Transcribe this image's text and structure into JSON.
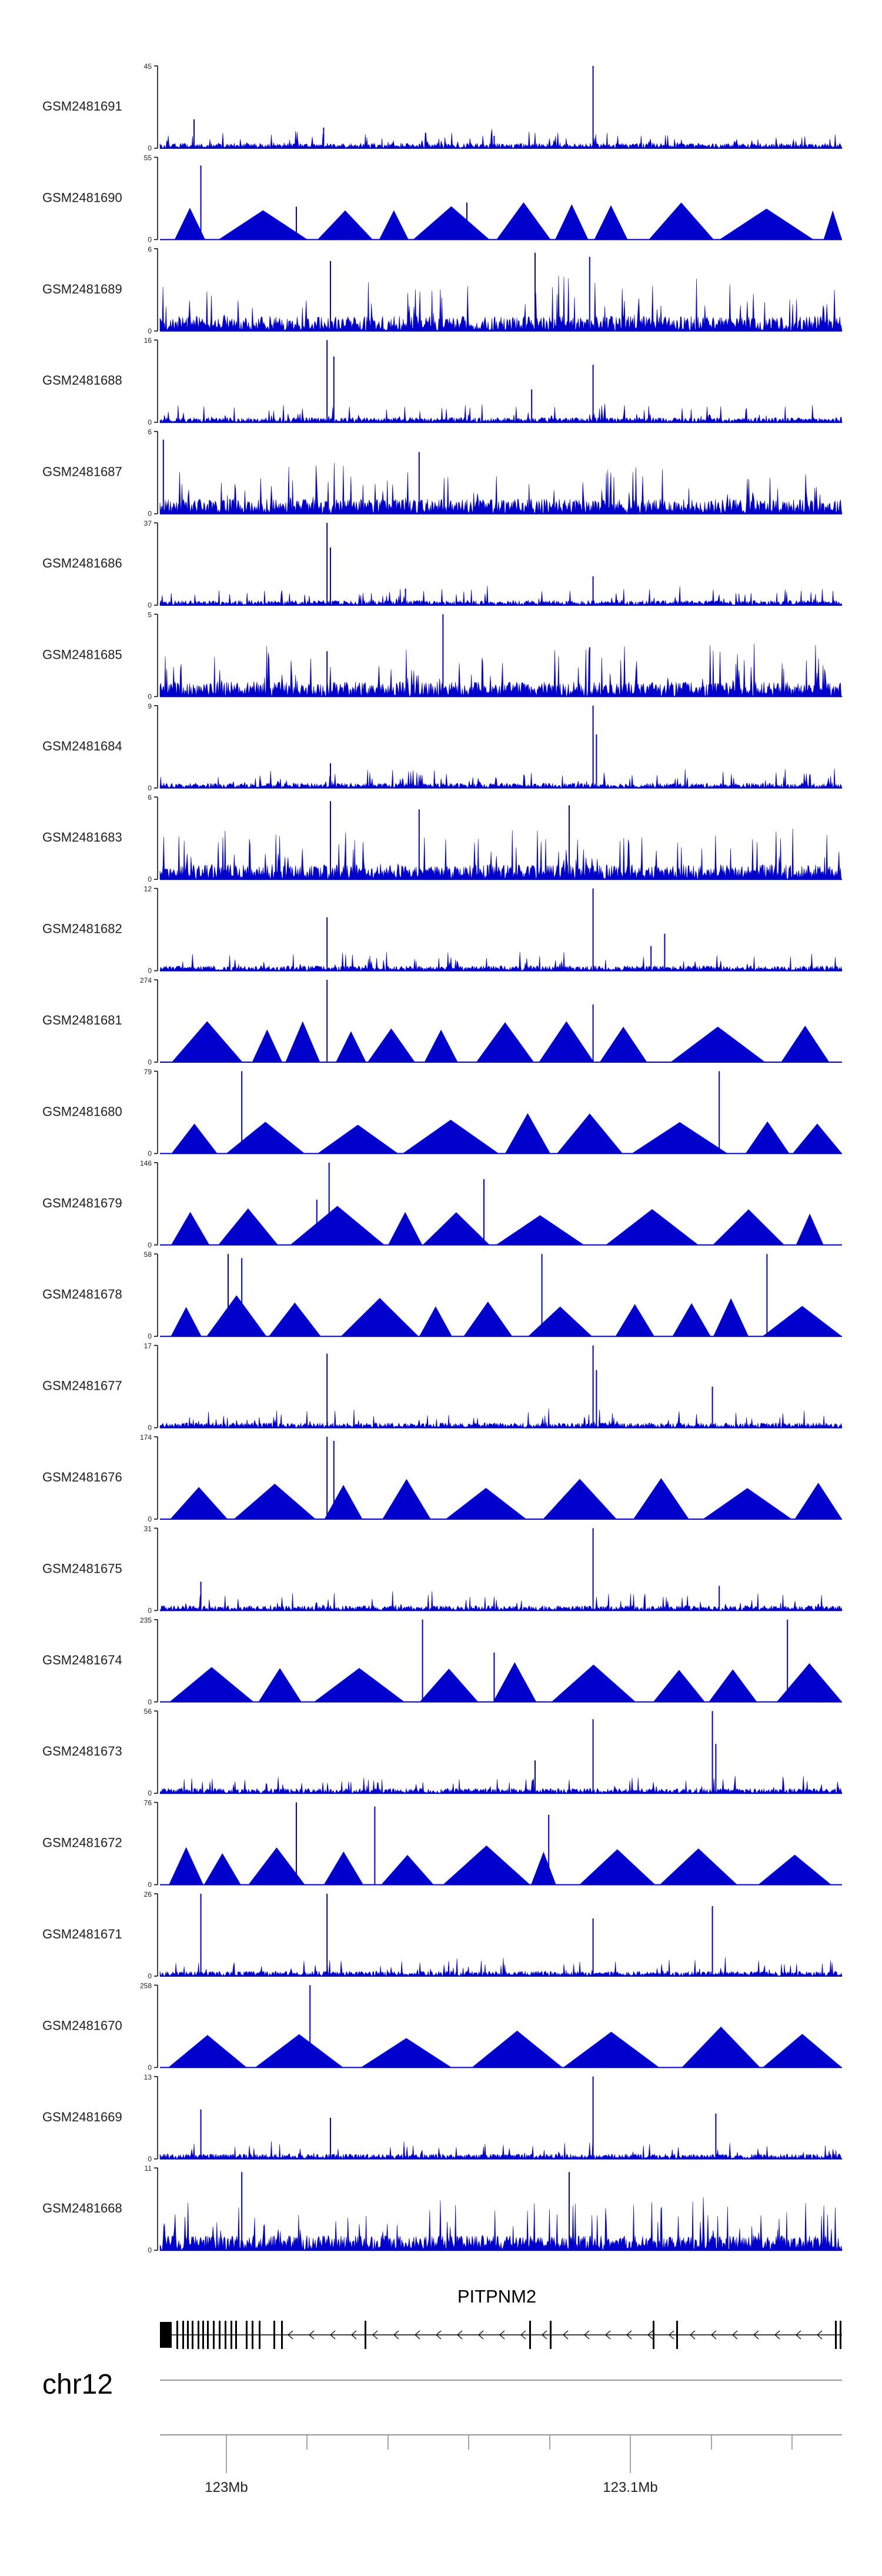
{
  "chart_data": {
    "type": "area",
    "chromosome": "chr12",
    "gene": "PITPNM2",
    "x_ticks": [
      "123Mb",
      "123.1Mb"
    ],
    "tracks": [
      {
        "name": "GSM2481691",
        "ymax": "45",
        "style": "dense",
        "seed": 11,
        "peaks": [
          {
            "p": 0.05,
            "h": 0.35
          },
          {
            "p": 0.24,
            "h": 0.25
          },
          {
            "p": 0.635,
            "h": 1.0
          },
          {
            "p": 0.49,
            "h": 0.15
          }
        ]
      },
      {
        "name": "GSM2481690",
        "ymax": "55",
        "style": "tri",
        "seed": 12,
        "peaks": [
          {
            "p": 0.06,
            "h": 0.9
          },
          {
            "p": 0.045,
            "h": 0.35
          },
          {
            "p": 0.45,
            "h": 0.45
          },
          {
            "p": 0.2,
            "h": 0.4
          }
        ]
      },
      {
        "name": "GSM2481689",
        "ymax": "6",
        "style": "noisy",
        "seed": 13,
        "peaks": [
          {
            "p": 0.25,
            "h": 0.85
          },
          {
            "p": 0.55,
            "h": 0.95
          },
          {
            "p": 0.63,
            "h": 0.9
          }
        ]
      },
      {
        "name": "GSM2481688",
        "ymax": "16",
        "style": "dense",
        "seed": 14,
        "peaks": [
          {
            "p": 0.245,
            "h": 1.0
          },
          {
            "p": 0.255,
            "h": 0.8
          },
          {
            "p": 0.545,
            "h": 0.4
          },
          {
            "p": 0.635,
            "h": 0.7
          }
        ]
      },
      {
        "name": "GSM2481687",
        "ymax": "6",
        "style": "noisy",
        "seed": 15,
        "peaks": [
          {
            "p": 0.005,
            "h": 0.9
          },
          {
            "p": 0.38,
            "h": 0.75
          }
        ]
      },
      {
        "name": "GSM2481686",
        "ymax": "37",
        "style": "dense",
        "seed": 16,
        "peaks": [
          {
            "p": 0.245,
            "h": 1.0
          },
          {
            "p": 0.25,
            "h": 0.7
          },
          {
            "p": 0.635,
            "h": 0.35
          },
          {
            "p": 0.36,
            "h": 0.2
          }
        ]
      },
      {
        "name": "GSM2481685",
        "ymax": "5",
        "style": "noisy",
        "seed": 17,
        "peaks": [
          {
            "p": 0.415,
            "h": 1.0
          },
          {
            "p": 0.63,
            "h": 0.6
          },
          {
            "p": 0.245,
            "h": 0.55
          }
        ]
      },
      {
        "name": "GSM2481684",
        "ymax": "9",
        "style": "dense",
        "seed": 18,
        "peaks": [
          {
            "p": 0.635,
            "h": 1.0
          },
          {
            "p": 0.64,
            "h": 0.65
          },
          {
            "p": 0.25,
            "h": 0.3
          }
        ]
      },
      {
        "name": "GSM2481683",
        "ymax": "6",
        "style": "noisy",
        "seed": 19,
        "peaks": [
          {
            "p": 0.25,
            "h": 0.95
          },
          {
            "p": 0.38,
            "h": 0.85
          },
          {
            "p": 0.6,
            "h": 0.9
          }
        ]
      },
      {
        "name": "GSM2481682",
        "ymax": "12",
        "style": "dense",
        "seed": 20,
        "peaks": [
          {
            "p": 0.245,
            "h": 0.65
          },
          {
            "p": 0.635,
            "h": 1.0
          },
          {
            "p": 0.74,
            "h": 0.45
          },
          {
            "p": 0.72,
            "h": 0.3
          }
        ]
      },
      {
        "name": "GSM2481681",
        "ymax": "274",
        "style": "tri",
        "seed": 21,
        "peaks": [
          {
            "p": 0.245,
            "h": 1.0
          },
          {
            "p": 0.635,
            "h": 0.7
          }
        ]
      },
      {
        "name": "GSM2481680",
        "ymax": "79",
        "style": "tri",
        "seed": 22,
        "peaks": [
          {
            "p": 0.12,
            "h": 1.0
          },
          {
            "p": 0.82,
            "h": 1.0
          }
        ]
      },
      {
        "name": "GSM2481679",
        "ymax": "146",
        "style": "tri",
        "seed": 23,
        "peaks": [
          {
            "p": 0.248,
            "h": 1.0
          },
          {
            "p": 0.475,
            "h": 0.8
          },
          {
            "p": 0.23,
            "h": 0.55
          }
        ]
      },
      {
        "name": "GSM2481678",
        "ymax": "58",
        "style": "tri",
        "seed": 24,
        "peaks": [
          {
            "p": 0.1,
            "h": 1.0
          },
          {
            "p": 0.12,
            "h": 0.95
          },
          {
            "p": 0.56,
            "h": 1.0
          },
          {
            "p": 0.89,
            "h": 1.0
          }
        ]
      },
      {
        "name": "GSM2481677",
        "ymax": "17",
        "style": "dense",
        "seed": 25,
        "peaks": [
          {
            "p": 0.245,
            "h": 0.9
          },
          {
            "p": 0.635,
            "h": 1.0
          },
          {
            "p": 0.64,
            "h": 0.7
          },
          {
            "p": 0.81,
            "h": 0.5
          }
        ]
      },
      {
        "name": "GSM2481676",
        "ymax": "174",
        "style": "tri",
        "seed": 26,
        "peaks": [
          {
            "p": 0.245,
            "h": 1.0
          },
          {
            "p": 0.255,
            "h": 0.95
          }
        ]
      },
      {
        "name": "GSM2481675",
        "ymax": "31",
        "style": "dense",
        "seed": 27,
        "peaks": [
          {
            "p": 0.635,
            "h": 1.0
          },
          {
            "p": 0.06,
            "h": 0.35
          },
          {
            "p": 0.82,
            "h": 0.3
          }
        ]
      },
      {
        "name": "GSM2481674",
        "ymax": "235",
        "style": "tri",
        "seed": 28,
        "peaks": [
          {
            "p": 0.385,
            "h": 1.0
          },
          {
            "p": 0.49,
            "h": 0.6
          },
          {
            "p": 0.92,
            "h": 1.0
          }
        ]
      },
      {
        "name": "GSM2481673",
        "ymax": "56",
        "style": "dense",
        "seed": 29,
        "peaks": [
          {
            "p": 0.635,
            "h": 0.9
          },
          {
            "p": 0.81,
            "h": 1.0
          },
          {
            "p": 0.815,
            "h": 0.6
          },
          {
            "p": 0.55,
            "h": 0.4
          }
        ]
      },
      {
        "name": "GSM2481672",
        "ymax": "76",
        "style": "tri",
        "seed": 30,
        "peaks": [
          {
            "p": 0.2,
            "h": 1.0
          },
          {
            "p": 0.315,
            "h": 0.95
          },
          {
            "p": 0.57,
            "h": 0.85
          }
        ]
      },
      {
        "name": "GSM2481671",
        "ymax": "26",
        "style": "dense",
        "seed": 31,
        "peaks": [
          {
            "p": 0.06,
            "h": 1.0
          },
          {
            "p": 0.245,
            "h": 1.0
          },
          {
            "p": 0.81,
            "h": 0.85
          },
          {
            "p": 0.635,
            "h": 0.7
          }
        ]
      },
      {
        "name": "GSM2481670",
        "ymax": "258",
        "style": "tri",
        "seed": 32,
        "peaks": [
          {
            "p": 0.22,
            "h": 1.0
          }
        ]
      },
      {
        "name": "GSM2481669",
        "ymax": "13",
        "style": "dense",
        "seed": 33,
        "peaks": [
          {
            "p": 0.635,
            "h": 1.0
          },
          {
            "p": 0.06,
            "h": 0.6
          },
          {
            "p": 0.25,
            "h": 0.5
          },
          {
            "p": 0.815,
            "h": 0.55
          }
        ]
      },
      {
        "name": "GSM2481668",
        "ymax": "11",
        "style": "noisy",
        "seed": 34,
        "peaks": [
          {
            "p": 0.12,
            "h": 0.95
          },
          {
            "p": 0.6,
            "h": 0.95
          }
        ]
      }
    ],
    "colors": {
      "signal": "#0000CC",
      "axis": "#000000",
      "gene": "#000000",
      "label": "#222222"
    }
  }
}
